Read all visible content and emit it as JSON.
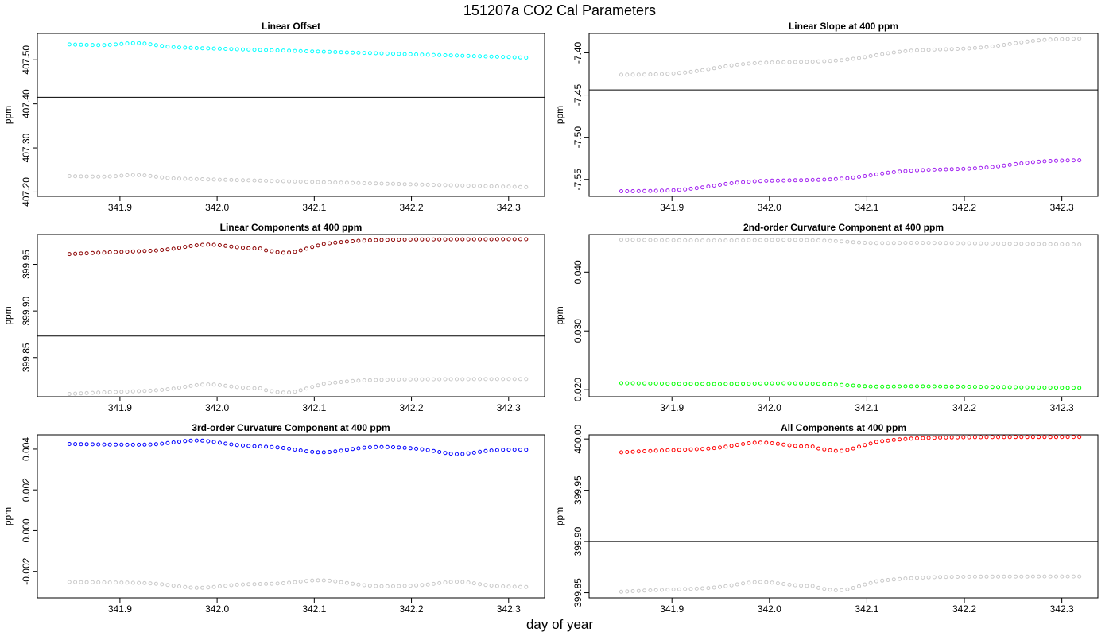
{
  "title": "151207a   CO2 Cal Parameters",
  "xlabel": "day of year",
  "chart_data": [
    {
      "id": "p1",
      "type": "scatter",
      "title": "Linear Offset",
      "xlabel": "",
      "ylabel": "ppm",
      "xlim": [
        341.815,
        342.337
      ],
      "ylim": [
        407.19,
        407.56
      ],
      "xticks": [
        "341.9",
        "342.0",
        "342.1",
        "342.2",
        "342.3"
      ],
      "yticks": [
        "407.20",
        "407.30",
        "407.40",
        "407.50"
      ],
      "hline": 407.415,
      "grid": false,
      "series": [
        {
          "color": "#00ffff",
          "y_start": 407.535,
          "y_end": 407.505,
          "shape": "offset"
        },
        {
          "color": "#c8c8c8",
          "y_start": 407.236,
          "y_end": 407.211,
          "shape": "offset"
        }
      ]
    },
    {
      "id": "p2",
      "type": "scatter",
      "title": "Linear Slope at 400 ppm",
      "xlabel": "",
      "ylabel": "ppm",
      "xlim": [
        341.815,
        342.337
      ],
      "ylim": [
        -7.57,
        -7.377
      ],
      "xticks": [
        "341.9",
        "342.0",
        "342.1",
        "342.2",
        "342.3"
      ],
      "yticks": [
        "-7.55",
        "-7.50",
        "-7.45",
        "-7.40"
      ],
      "hline": -7.444,
      "grid": false,
      "series": [
        {
          "color": "#c8c8c8",
          "y_start": -7.426,
          "y_end": -7.383,
          "shape": "slope"
        },
        {
          "color": "#a020f0",
          "y_start": -7.564,
          "y_end": -7.527,
          "shape": "slope"
        }
      ]
    },
    {
      "id": "p3",
      "type": "scatter",
      "title": "Linear Components at 400 ppm",
      "xlabel": "",
      "ylabel": "ppm",
      "xlim": [
        341.815,
        342.337
      ],
      "ylim": [
        399.808,
        399.982
      ],
      "xticks": [
        "341.9",
        "342.0",
        "342.1",
        "342.2",
        "342.3"
      ],
      "yticks": [
        "399.85",
        "399.90",
        "399.95"
      ],
      "hline": 399.873,
      "grid": false,
      "series": [
        {
          "color": "#8b0000",
          "y_start": 399.961,
          "y_end": 399.977,
          "shape": "comp"
        },
        {
          "color": "#c8c8c8",
          "y_start": 399.811,
          "y_end": 399.827,
          "shape": "comp"
        }
      ]
    },
    {
      "id": "p4",
      "type": "scatter",
      "title": "2nd-order Curvature Component at 400 ppm",
      "xlabel": "",
      "ylabel": "ppm",
      "xlim": [
        341.815,
        342.337
      ],
      "ylim": [
        0.0188,
        0.0464
      ],
      "xticks": [
        "341.9",
        "342.0",
        "342.1",
        "342.2",
        "342.3"
      ],
      "yticks": [
        "0.020",
        "0.030",
        "0.040"
      ],
      "hline": null,
      "grid": false,
      "series": [
        {
          "color": "#c8c8c8",
          "y_start": 0.0455,
          "y_end": 0.0447,
          "shape": "curv2"
        },
        {
          "color": "#00ff00",
          "y_start": 0.0211,
          "y_end": 0.0203,
          "shape": "curv2"
        }
      ]
    },
    {
      "id": "p5",
      "type": "scatter",
      "title": "3rd-order Curvature Component at 400 ppm",
      "xlabel": "",
      "ylabel": "ppm",
      "xlim": [
        341.815,
        342.337
      ],
      "ylim": [
        -0.0033,
        0.0047
      ],
      "xticks": [
        "341.9",
        "342.0",
        "342.1",
        "342.2",
        "342.3"
      ],
      "yticks": [
        "-0.002",
        "0.000",
        "0.002",
        "0.004"
      ],
      "hline": null,
      "grid": false,
      "series": [
        {
          "color": "#0000ff",
          "y_start": 0.00425,
          "y_end": 0.00397,
          "shape": "curv3"
        },
        {
          "color": "#c8c8c8",
          "y_start": -0.00252,
          "y_end": -0.00276,
          "shape": "curv3inv"
        }
      ]
    },
    {
      "id": "p6",
      "type": "scatter",
      "title": "All Components at 400 ppm",
      "xlabel": "",
      "ylabel": "ppm",
      "xlim": [
        341.815,
        342.337
      ],
      "ylim": [
        399.845,
        400.004
      ],
      "xticks": [
        "341.9",
        "342.0",
        "342.1",
        "342.2",
        "342.3"
      ],
      "yticks": [
        "399.85",
        "399.90",
        "399.95",
        "400.00"
      ],
      "hline": 399.9,
      "grid": false,
      "series": [
        {
          "color": "#ff0000",
          "y_start": 399.987,
          "y_end": 400.002,
          "shape": "comp"
        },
        {
          "color": "#c8c8c8",
          "y_start": 399.851,
          "y_end": 399.866,
          "shape": "comp"
        }
      ]
    }
  ]
}
